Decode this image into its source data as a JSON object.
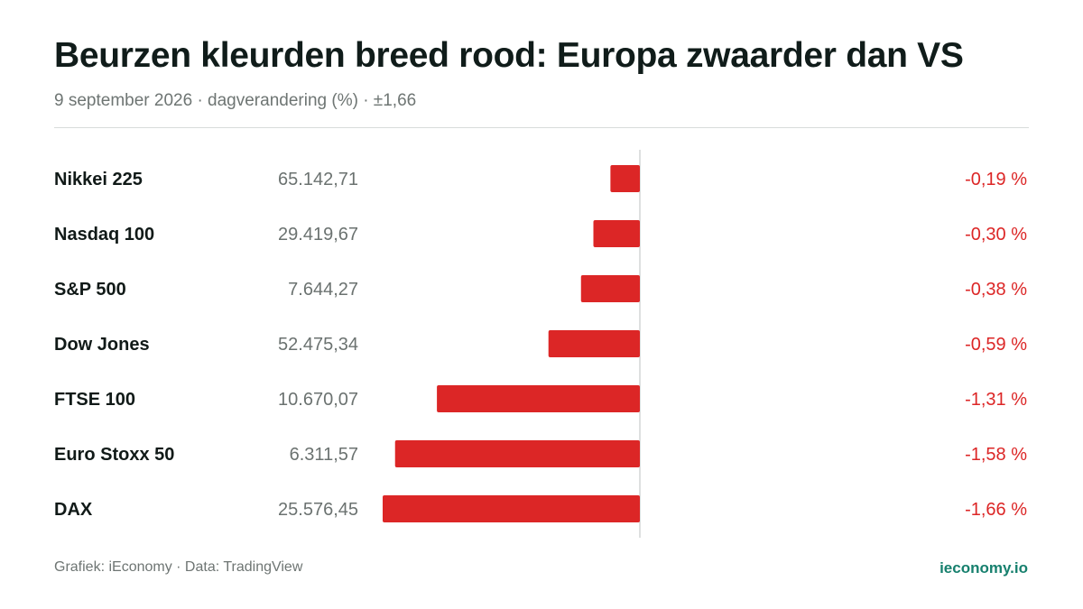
{
  "header": {
    "title": "Beurzen kleurden breed rood: Europa zwaarder dan VS",
    "subtitle": "9 september 2026 · dagverandering (%) · ±1,66"
  },
  "footer": {
    "source": "Grafiek: iEconomy · Data: TradingView",
    "brand": "ieconomy.io"
  },
  "colors": {
    "negative": "#dc2626",
    "zero_line": "#d4d6d5",
    "label": "#111a18",
    "value": "#6b7270"
  },
  "chart_data": {
    "type": "bar",
    "orientation": "horizontal",
    "unit": "%",
    "xlim": [
      -1.66,
      1.66
    ],
    "categories": [
      "Nikkei 225",
      "Nasdaq 100",
      "S&P 500",
      "Dow Jones",
      "FTSE 100",
      "Euro Stoxx 50",
      "DAX"
    ],
    "index_levels": [
      "65.142,71",
      "29.419,67",
      "7.644,27",
      "52.475,34",
      "10.670,07",
      "6.311,57",
      "25.576,45"
    ],
    "values": [
      -0.19,
      -0.3,
      -0.38,
      -0.59,
      -1.31,
      -1.58,
      -1.66
    ],
    "value_labels": [
      "-0,19 %",
      "-0,30 %",
      "-0,38 %",
      "-0,59 %",
      "-1,31 %",
      "-1,58 %",
      "-1,66 %"
    ]
  }
}
